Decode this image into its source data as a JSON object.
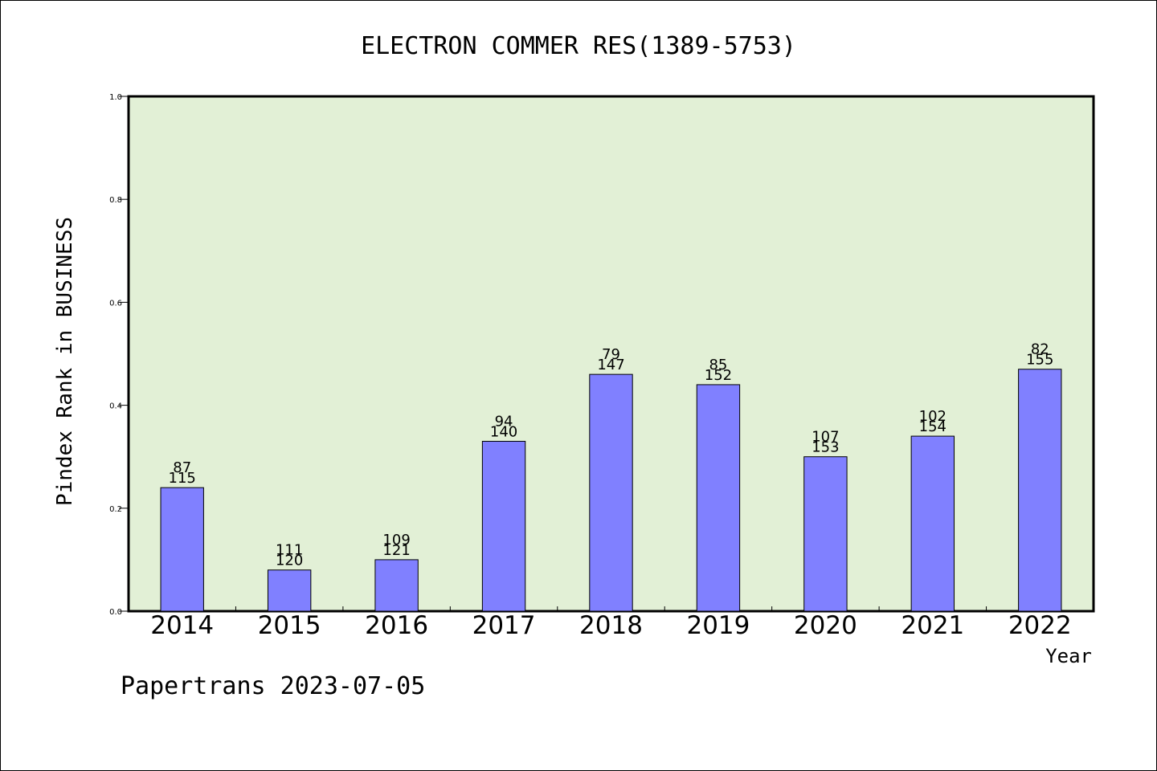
{
  "chart_data": {
    "type": "bar",
    "title": "ELECTRON COMMER RES(1389-5753)",
    "xlabel": "Year",
    "ylabel": "Pindex Rank in BUSINESS",
    "categories": [
      "2014",
      "2015",
      "2016",
      "2017",
      "2018",
      "2019",
      "2020",
      "2021",
      "2022"
    ],
    "values": [
      0.24,
      0.08,
      0.1,
      0.33,
      0.46,
      0.44,
      0.3,
      0.34,
      0.47
    ],
    "upper_labels": [
      "87",
      "111",
      "109",
      "94",
      "79",
      "85",
      "107",
      "102",
      "82"
    ],
    "lower_labels": [
      "115",
      "120",
      "121",
      "140",
      "147",
      "152",
      "153",
      "154",
      "155"
    ],
    "ylim": [
      0,
      1.0
    ],
    "yticks": [
      "0.0",
      "0.2",
      "0.4",
      "0.6",
      "0.8",
      "1.0"
    ],
    "grid": false,
    "bar_color": "#8080ff",
    "plot_background": "#e2f0d6"
  },
  "footer": "Papertrans 2023-07-05"
}
